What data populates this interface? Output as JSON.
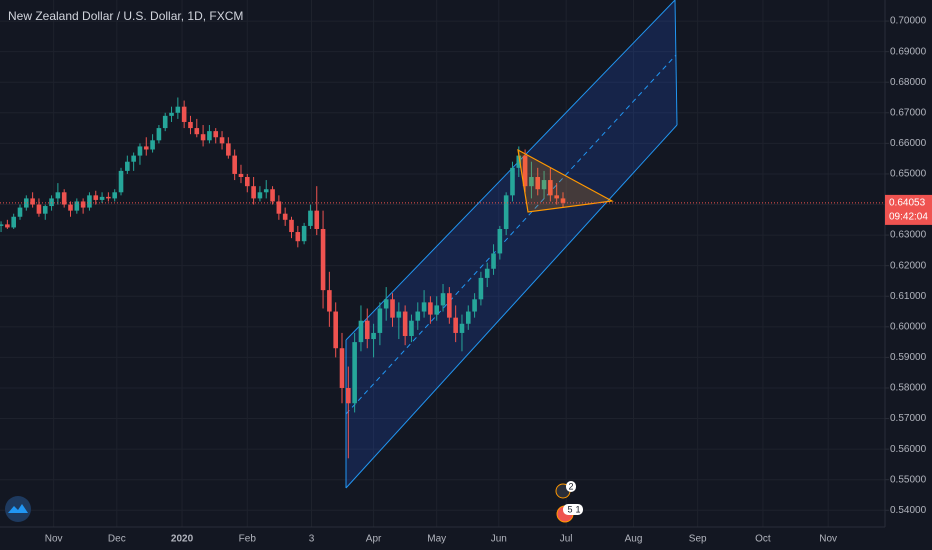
{
  "chart_data": {
    "type": "candlestick",
    "title": "New Zealand Dollar / U.S. Dollar, 1D, FXCM",
    "up_color": "#26a69a",
    "down_color": "#ef5350",
    "grid": true,
    "xlim": [
      -86.5,
      334
    ],
    "ylim": [
      0.53453,
      0.70689
    ],
    "xticks": [
      {
        "value": -61,
        "label": "Nov"
      },
      {
        "value": -31,
        "label": "Dec"
      },
      {
        "value": 0,
        "label": "2020"
      },
      {
        "value": 31,
        "label": "Feb"
      },
      {
        "value": 61.5,
        "label": "3"
      },
      {
        "value": 91,
        "label": "Apr"
      },
      {
        "value": 121,
        "label": "May"
      },
      {
        "value": 150.5,
        "label": "Jun"
      },
      {
        "value": 182.5,
        "label": "Jul"
      },
      {
        "value": 214.5,
        "label": "Aug"
      },
      {
        "value": 245,
        "label": "Sep"
      },
      {
        "value": 276,
        "label": "Oct"
      },
      {
        "value": 307,
        "label": "Nov"
      }
    ],
    "yticks": [
      {
        "value": 0.54,
        "label": "0.54000"
      },
      {
        "value": 0.55,
        "label": "0.55000"
      },
      {
        "value": 0.56,
        "label": "0.56000"
      },
      {
        "value": 0.57,
        "label": "0.57000"
      },
      {
        "value": 0.58,
        "label": "0.58000"
      },
      {
        "value": 0.59,
        "label": "0.59000"
      },
      {
        "value": 0.6,
        "label": "0.60000"
      },
      {
        "value": 0.61,
        "label": "0.61000"
      },
      {
        "value": 0.62,
        "label": "0.62000"
      },
      {
        "value": 0.63,
        "label": "0.63000"
      },
      {
        "value": 0.64,
        "label": "0.64000"
      },
      {
        "value": 0.65,
        "label": "0.65000"
      },
      {
        "value": 0.66,
        "label": "0.66000"
      },
      {
        "value": 0.67,
        "label": "0.67000"
      },
      {
        "value": 0.68,
        "label": "0.68000"
      },
      {
        "value": 0.69,
        "label": "0.69000"
      },
      {
        "value": 0.7,
        "label": "0.70000"
      }
    ],
    "last_price": 0.64053,
    "countdown": "09:42:04",
    "events": [
      "2",
      "5",
      "1"
    ],
    "candles": [
      [
        -86,
        0.633,
        0.6345,
        0.631,
        0.6335
      ],
      [
        -83,
        0.6335,
        0.635,
        0.632,
        0.6325
      ],
      [
        -80,
        0.6325,
        0.637,
        0.632,
        0.636
      ],
      [
        -77,
        0.636,
        0.64,
        0.635,
        0.639
      ],
      [
        -74,
        0.639,
        0.643,
        0.638,
        0.642
      ],
      [
        -71,
        0.642,
        0.644,
        0.639,
        0.64
      ],
      [
        -68,
        0.64,
        0.642,
        0.636,
        0.637
      ],
      [
        -65,
        0.637,
        0.64,
        0.635,
        0.6395
      ],
      [
        -62,
        0.6395,
        0.643,
        0.638,
        0.642
      ],
      [
        -59,
        0.642,
        0.647,
        0.64,
        0.644
      ],
      [
        -56,
        0.644,
        0.645,
        0.639,
        0.64
      ],
      [
        -53,
        0.64,
        0.641,
        0.636,
        0.638
      ],
      [
        -50,
        0.638,
        0.642,
        0.637,
        0.641
      ],
      [
        -47,
        0.641,
        0.642,
        0.637,
        0.639
      ],
      [
        -44,
        0.639,
        0.644,
        0.638,
        0.643
      ],
      [
        -41,
        0.643,
        0.6445,
        0.64,
        0.6415
      ],
      [
        -38,
        0.6415,
        0.644,
        0.6405,
        0.6425
      ],
      [
        -35,
        0.6425,
        0.644,
        0.641,
        0.642
      ],
      [
        -32,
        0.642,
        0.645,
        0.641,
        0.644
      ],
      [
        -29,
        0.644,
        0.652,
        0.643,
        0.651
      ],
      [
        -26,
        0.651,
        0.656,
        0.65,
        0.654
      ],
      [
        -23,
        0.654,
        0.657,
        0.651,
        0.656
      ],
      [
        -20,
        0.656,
        0.66,
        0.653,
        0.659
      ],
      [
        -17,
        0.659,
        0.662,
        0.656,
        0.658
      ],
      [
        -14,
        0.658,
        0.663,
        0.657,
        0.661
      ],
      [
        -11,
        0.661,
        0.666,
        0.66,
        0.665
      ],
      [
        -8,
        0.665,
        0.67,
        0.664,
        0.669
      ],
      [
        -5,
        0.669,
        0.672,
        0.667,
        0.67
      ],
      [
        -2,
        0.67,
        0.675,
        0.668,
        0.672
      ],
      [
        1,
        0.672,
        0.674,
        0.665,
        0.667
      ],
      [
        4,
        0.667,
        0.669,
        0.663,
        0.665
      ],
      [
        7,
        0.665,
        0.668,
        0.662,
        0.663
      ],
      [
        10,
        0.663,
        0.666,
        0.659,
        0.661
      ],
      [
        13,
        0.661,
        0.666,
        0.66,
        0.664
      ],
      [
        16,
        0.664,
        0.665,
        0.66,
        0.662
      ],
      [
        19,
        0.662,
        0.664,
        0.658,
        0.66
      ],
      [
        22,
        0.66,
        0.662,
        0.655,
        0.656
      ],
      [
        25,
        0.656,
        0.658,
        0.648,
        0.65
      ],
      [
        28,
        0.65,
        0.653,
        0.647,
        0.649
      ],
      [
        31,
        0.649,
        0.65,
        0.644,
        0.646
      ],
      [
        34,
        0.646,
        0.649,
        0.64,
        0.642
      ],
      [
        37,
        0.642,
        0.646,
        0.641,
        0.644
      ],
      [
        40,
        0.644,
        0.648,
        0.642,
        0.645
      ],
      [
        43,
        0.645,
        0.646,
        0.64,
        0.641
      ],
      [
        46,
        0.641,
        0.643,
        0.635,
        0.637
      ],
      [
        49,
        0.637,
        0.639,
        0.633,
        0.635
      ],
      [
        52,
        0.635,
        0.636,
        0.629,
        0.631
      ],
      [
        55,
        0.631,
        0.633,
        0.626,
        0.628
      ],
      [
        58,
        0.628,
        0.634,
        0.627,
        0.633
      ],
      [
        61,
        0.633,
        0.64,
        0.632,
        0.638
      ],
      [
        64,
        0.638,
        0.646,
        0.63,
        0.632
      ],
      [
        67,
        0.632,
        0.638,
        0.606,
        0.612
      ],
      [
        70,
        0.612,
        0.618,
        0.6,
        0.605
      ],
      [
        73,
        0.605,
        0.608,
        0.59,
        0.593
      ],
      [
        76,
        0.593,
        0.598,
        0.575,
        0.58
      ],
      [
        79,
        0.58,
        0.587,
        0.557,
        0.575
      ],
      [
        82,
        0.575,
        0.598,
        0.572,
        0.595
      ],
      [
        85,
        0.595,
        0.607,
        0.592,
        0.602
      ],
      [
        88,
        0.602,
        0.606,
        0.593,
        0.596
      ],
      [
        91,
        0.596,
        0.601,
        0.59,
        0.598
      ],
      [
        94,
        0.598,
        0.608,
        0.594,
        0.606
      ],
      [
        97,
        0.606,
        0.613,
        0.602,
        0.609
      ],
      [
        100,
        0.609,
        0.611,
        0.6,
        0.603
      ],
      [
        103,
        0.603,
        0.608,
        0.596,
        0.605
      ],
      [
        106,
        0.605,
        0.607,
        0.594,
        0.597
      ],
      [
        109,
        0.597,
        0.604,
        0.595,
        0.602
      ],
      [
        112,
        0.602,
        0.608,
        0.599,
        0.605
      ],
      [
        115,
        0.605,
        0.612,
        0.603,
        0.608
      ],
      [
        118,
        0.608,
        0.61,
        0.601,
        0.604
      ],
      [
        121,
        0.604,
        0.61,
        0.602,
        0.607
      ],
      [
        124,
        0.607,
        0.614,
        0.605,
        0.611
      ],
      [
        127,
        0.611,
        0.613,
        0.601,
        0.603
      ],
      [
        130,
        0.603,
        0.607,
        0.595,
        0.598
      ],
      [
        133,
        0.598,
        0.604,
        0.592,
        0.601
      ],
      [
        136,
        0.601,
        0.607,
        0.599,
        0.605
      ],
      [
        139,
        0.605,
        0.611,
        0.603,
        0.609
      ],
      [
        142,
        0.609,
        0.618,
        0.607,
        0.616
      ],
      [
        145,
        0.616,
        0.621,
        0.613,
        0.619
      ],
      [
        148,
        0.619,
        0.627,
        0.617,
        0.624
      ],
      [
        151,
        0.624,
        0.633,
        0.622,
        0.632
      ],
      [
        154,
        0.632,
        0.644,
        0.63,
        0.643
      ],
      [
        157,
        0.643,
        0.654,
        0.641,
        0.652
      ],
      [
        160,
        0.652,
        0.659,
        0.649,
        0.656
      ],
      [
        163,
        0.656,
        0.658,
        0.644,
        0.646
      ],
      [
        166,
        0.646,
        0.654,
        0.642,
        0.649
      ],
      [
        169,
        0.649,
        0.652,
        0.643,
        0.645
      ],
      [
        172,
        0.645,
        0.651,
        0.642,
        0.648
      ],
      [
        175,
        0.648,
        0.652,
        0.641,
        0.643
      ],
      [
        178,
        0.643,
        0.647,
        0.64,
        0.642
      ],
      [
        181,
        0.642,
        0.644,
        0.639,
        0.64053
      ]
    ]
  }
}
